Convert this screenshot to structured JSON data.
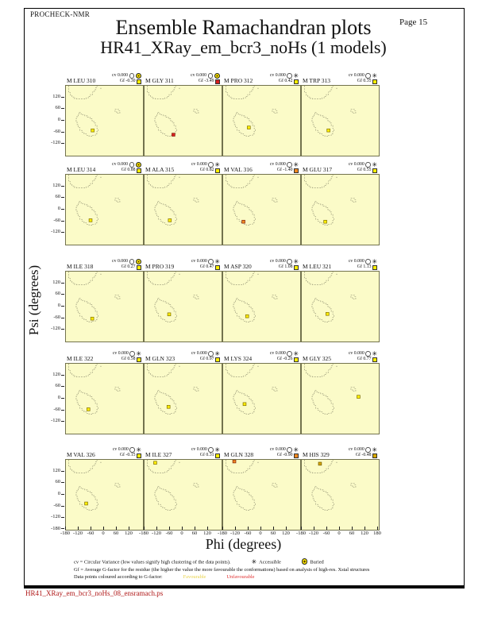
{
  "page": {
    "procheck": "PROCHECK-NMR",
    "page_label": "Page 15",
    "title": "Ensemble Ramachandran plots",
    "subtitle": "HR41_XRay_em_bcr3_noHs (1 models)",
    "footer_filename": "HR41_XRay_em_bcr3_noHs_08_ensramach.ps"
  },
  "stat_labels": {
    "cv": "cv",
    "gf": "Gf"
  },
  "palette": {
    "yellow": "#FFEE00",
    "orange": "#F08820",
    "red": "#D82020",
    "darkyellow": "#D8A800",
    "plot_bg": "#FBFBC8",
    "plot_border": "#72724E",
    "region_dash": "#9A9A7A",
    "favourable_text": "#E8D24A",
    "unfavourable_text": "#E03030",
    "footer_red": "#B01818"
  },
  "chart_data": {
    "type": "scatter",
    "layout": "5 rows x 4 columns of Ramachandran subplots, one residue per panel, one model point each",
    "xlabel": "Phi (degrees)",
    "ylabel": "Psi (degrees)",
    "xlim": [
      -180,
      180
    ],
    "ylim": [
      -180,
      180
    ],
    "xticks": [
      -180,
      -120,
      -60,
      0,
      60,
      120
    ],
    "xtick_last": 180,
    "yticks": [
      120,
      60,
      0,
      -60,
      -120
    ],
    "ytick_bottom": -180,
    "grid": false,
    "panels": [
      {
        "residue": "M LEU 310",
        "cv": "0.000",
        "gf": "-0.30",
        "exposure": "buried",
        "gf_color": "yellow",
        "phi": -55,
        "psi": -50,
        "color": "yellow"
      },
      {
        "residue": "M GLY 311",
        "cv": "0.000",
        "gf": "-3.49",
        "exposure": "buried",
        "gf_color": "red",
        "phi": -45,
        "psi": -72,
        "color": "red"
      },
      {
        "residue": "M PRO 312",
        "cv": "0.000",
        "gf": "0.42",
        "exposure": "accessible",
        "gf_color": "yellow",
        "phi": -60,
        "psi": -35,
        "color": "yellow"
      },
      {
        "residue": "M TRP 313",
        "cv": "0.000",
        "gf": "0.35",
        "exposure": "accessible",
        "gf_color": "yellow",
        "phi": -55,
        "psi": -50,
        "color": "yellow"
      },
      {
        "residue": "M LEU 314",
        "cv": "0.000",
        "gf": "0.88",
        "exposure": "buried",
        "gf_color": "yellow",
        "phi": -65,
        "psi": -55,
        "color": "yellow"
      },
      {
        "residue": "M ALA 315",
        "cv": "0.000",
        "gf": "0.82",
        "exposure": "accessible",
        "gf_color": "yellow",
        "phi": -62,
        "psi": -55,
        "color": "yellow"
      },
      {
        "residue": "M VAL 316",
        "cv": "0.000",
        "gf": "-1.40",
        "exposure": "accessible",
        "gf_color": "orange",
        "phi": -85,
        "psi": -62,
        "color": "orange"
      },
      {
        "residue": "M GLU 317",
        "cv": "0.000",
        "gf": "0.55",
        "exposure": "accessible",
        "gf_color": "yellow",
        "phi": -70,
        "psi": -62,
        "color": "yellow"
      },
      {
        "residue": "M ILE 318",
        "cv": "0.000",
        "gf": "0.27",
        "exposure": "buried",
        "gf_color": "yellow",
        "phi": -57,
        "psi": -62,
        "color": "yellow"
      },
      {
        "residue": "M PRO 319",
        "cv": "0.000",
        "gf": "0.47",
        "exposure": "accessible",
        "gf_color": "yellow",
        "phi": -65,
        "psi": -40,
        "color": "yellow"
      },
      {
        "residue": "M ASP 320",
        "cv": "0.000",
        "gf": "1.08",
        "exposure": "accessible",
        "gf_color": "yellow",
        "phi": -68,
        "psi": -50,
        "color": "yellow"
      },
      {
        "residue": "M LEU 321",
        "cv": "0.000",
        "gf": "1.13",
        "exposure": "accessible",
        "gf_color": "yellow",
        "phi": -60,
        "psi": -38,
        "color": "yellow"
      },
      {
        "residue": "M ILE 322",
        "cv": "0.000",
        "gf": "0.58",
        "exposure": "accessible",
        "gf_color": "yellow",
        "phi": -75,
        "psi": -55,
        "color": "yellow"
      },
      {
        "residue": "M GLN 323",
        "cv": "0.000",
        "gf": "0.97",
        "exposure": "accessible",
        "gf_color": "yellow",
        "phi": -68,
        "psi": -42,
        "color": "yellow"
      },
      {
        "residue": "M LYS 324",
        "cv": "0.000",
        "gf": "-0.26",
        "exposure": "accessible",
        "gf_color": "yellow",
        "phi": -80,
        "psi": -28,
        "color": "yellow"
      },
      {
        "residue": "M GLY 325",
        "cv": "0.000",
        "gf": "0.77",
        "exposure": "accessible",
        "gf_color": "yellow",
        "phi": 85,
        "psi": 10,
        "color": "yellow"
      },
      {
        "residue": "M VAL 326",
        "cv": "0.000",
        "gf": "-0.15",
        "exposure": "accessible",
        "gf_color": "yellow",
        "phi": -85,
        "psi": -45,
        "color": "yellow"
      },
      {
        "residue": "M ILE 327",
        "cv": "0.000",
        "gf": "0.31",
        "exposure": "accessible",
        "gf_color": "yellow",
        "phi": -130,
        "psi": 165,
        "color": "yellow"
      },
      {
        "residue": "M GLN 328",
        "cv": "0.000",
        "gf": "-0.90",
        "exposure": "accessible",
        "gf_color": "orange",
        "phi": -128,
        "psi": 172,
        "color": "orange"
      },
      {
        "residue": "M HIS 329",
        "cv": "0.000",
        "gf": "-0.48",
        "exposure": "accessible",
        "gf_color": "darkyellow",
        "phi": -95,
        "psi": 160,
        "color": "darkyellow"
      }
    ]
  },
  "legend": {
    "cv_line": "cv = Circular Variance (low values signify high clustering of the data points).",
    "accessible_label": "Accessible",
    "buried_label": "Buried",
    "gf_line": "Gf = Average G-factor for the residue (the higher the value the more favourable the conformations) based on analysis of high-res. Xstal structures",
    "points_line": "Data points coloured according to G-factor:",
    "favourable_label": "Favourable",
    "unfavourable_label": "Unfavourable"
  }
}
